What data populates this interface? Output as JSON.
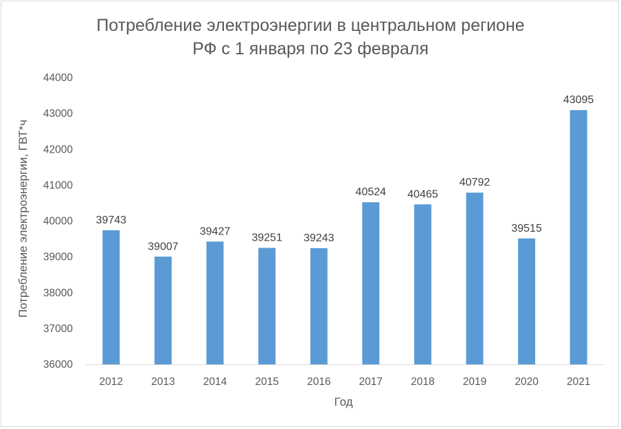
{
  "chart_data": {
    "type": "bar",
    "title_lines": [
      "Потребление электроэнергии в центральном регионе",
      "РФ с 1 января по 23 февраля"
    ],
    "xlabel": "Год",
    "ylabel": "Потребление электроэнергии, ГВТ*ч",
    "categories": [
      "2012",
      "2013",
      "2014",
      "2015",
      "2016",
      "2017",
      "2018",
      "2019",
      "2020",
      "2021"
    ],
    "values": [
      39743,
      39007,
      39427,
      39251,
      39243,
      40524,
      40465,
      40792,
      39515,
      43095
    ],
    "ylim": [
      36000,
      44000
    ],
    "yticks": [
      36000,
      37000,
      38000,
      39000,
      40000,
      41000,
      42000,
      43000,
      44000
    ],
    "grid": false,
    "bar_color": "#5b9bd5",
    "data_labels": true
  }
}
